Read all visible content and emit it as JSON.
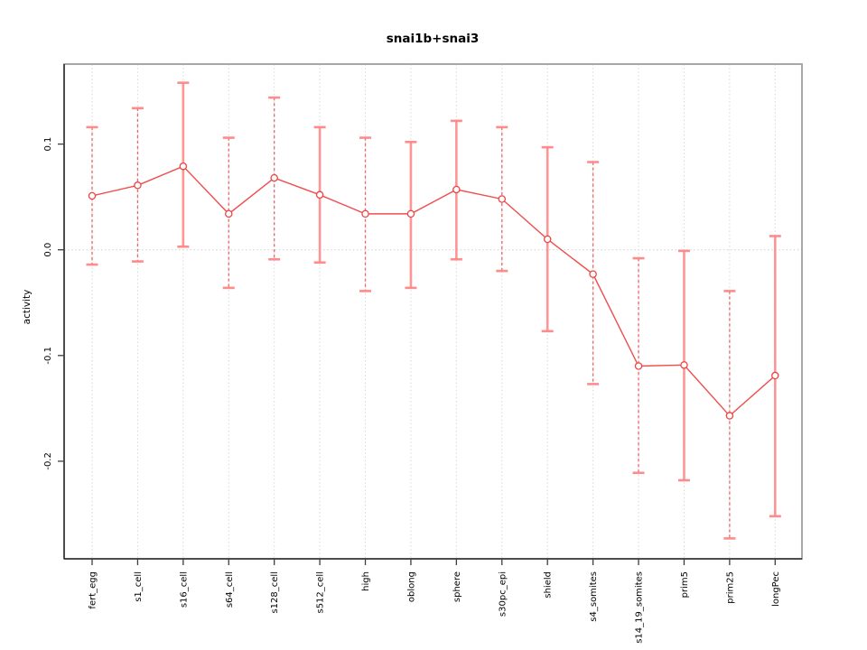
{
  "chart_data": {
    "type": "line",
    "title": "snai1b+snai3",
    "xlabel": "",
    "ylabel": "activity",
    "categories": [
      "fert_egg",
      "s1_cell",
      "s16_cell",
      "s64_cell",
      "s128_cell",
      "s512_cell",
      "high",
      "oblong",
      "sphere",
      "s30pc_epi",
      "shield",
      "s4_somites",
      "s14_19_somites",
      "prim5",
      "prim25",
      "longPec"
    ],
    "series": [
      {
        "name": "snai1b+snai3",
        "values": [
          0.051,
          0.061,
          0.079,
          0.034,
          0.068,
          0.052,
          0.034,
          0.034,
          0.057,
          0.048,
          0.01,
          -0.023,
          -0.11,
          -0.109,
          -0.157,
          -0.119
        ],
        "upper": [
          0.116,
          0.134,
          0.158,
          0.106,
          0.144,
          0.116,
          0.106,
          0.102,
          0.122,
          0.116,
          0.097,
          0.083,
          -0.008,
          -0.001,
          -0.039,
          0.013
        ],
        "lower": [
          -0.014,
          -0.011,
          0.003,
          -0.036,
          -0.009,
          -0.012,
          -0.039,
          -0.036,
          -0.009,
          -0.02,
          -0.077,
          -0.127,
          -0.211,
          -0.218,
          -0.273,
          -0.252
        ],
        "bar_styles": [
          "dashed",
          "dashed",
          "solid",
          "dashed",
          "dashed",
          "solid",
          "dashed",
          "solid",
          "solid",
          "dashed",
          "solid",
          "dashed",
          "dashed",
          "solid",
          "dashed",
          "solid"
        ]
      }
    ],
    "yticks": [
      0.1,
      0.0,
      -0.1,
      -0.2
    ],
    "ytick_labels": [
      "0.1",
      "0.0",
      "-0.1",
      "-0.2"
    ],
    "ylim": [
      -0.293,
      0.176
    ],
    "grid": {
      "vertical_at_each_category": true,
      "horizontal_zero_line": true,
      "style": "dotted"
    },
    "legend": "none",
    "colors": {
      "line": "#ee4444",
      "point_stroke": "#ee4444",
      "point_fill": "#ffffff",
      "error_bar_solid": "#ff8a8a",
      "error_bar_dashed": "#e64f4f",
      "error_bar_cap": "#ff8585",
      "gridline": "#d7d7d7",
      "zero_line": "#cfcfcf",
      "box": "#9e9e9e",
      "axis_line": "#2b2b2b",
      "tick": "#3d3d3d",
      "text": "#000000",
      "background": "#ffffff"
    }
  }
}
